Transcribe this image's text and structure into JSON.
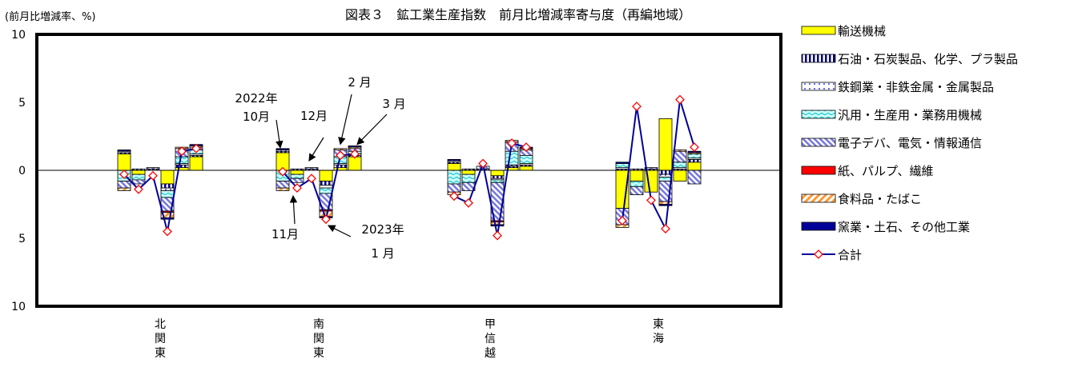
{
  "chart_data": {
    "type": "bar",
    "stacked": true,
    "title": "図表３　鉱工業生産指数　前月比増減率寄与度（再編地域）",
    "ylabel": "(前月比増減率、%)",
    "ylim": [
      -10,
      10
    ],
    "yticks": [
      {
        "value": 10,
        "label": "10"
      },
      {
        "value": 5,
        "label": "5"
      },
      {
        "value": 0,
        "label": "0"
      },
      {
        "value": -5,
        "label": "5"
      },
      {
        "value": -10,
        "label": "10"
      }
    ],
    "regions": [
      "北関東",
      "南関東",
      "甲信越",
      "東海"
    ],
    "months": [
      "2022年10月",
      "11月",
      "12月",
      "2023年1月",
      "2月",
      "3月"
    ],
    "series": [
      {
        "name": "輸送機械",
        "color": "#ffff00",
        "pattern": "solid",
        "values": [
          [
            1.2,
            -0.3,
            0,
            -1.0,
            0.2,
            1.0
          ],
          [
            1.3,
            -0.3,
            0,
            -0.8,
            0.2,
            1.0
          ],
          [
            0.5,
            -0.3,
            0,
            -0.4,
            0.2,
            0.3
          ],
          [
            -2.8,
            -0.8,
            -1.6,
            3.8,
            -0.8,
            0.6
          ]
        ]
      },
      {
        "name": "石油・石炭製品、化学、プラ製品",
        "color": "#000080",
        "pattern": "vstripe",
        "values": [
          [
            0.1,
            0.1,
            0.1,
            -0.3,
            0.2,
            0.1
          ],
          [
            0.1,
            0.1,
            0.1,
            -0.3,
            0.2,
            0.1
          ],
          [
            0.1,
            0.1,
            0.1,
            -0.2,
            0.1,
            0.1
          ],
          [
            0.1,
            0.1,
            0.1,
            -0.3,
            0.1,
            0.2
          ]
        ]
      },
      {
        "name": "鉄鋼業・非鉄金属・金属製品",
        "color": "#0000ff",
        "pattern": "dots",
        "values": [
          [
            0.1,
            0,
            0,
            -0.2,
            0.1,
            0.1
          ],
          [
            0.1,
            0,
            0,
            -0.2,
            0.1,
            0.1
          ],
          [
            0.1,
            0,
            0,
            -0.1,
            0.1,
            0.1
          ],
          [
            0.1,
            0,
            0,
            -0.2,
            0.1,
            0.1
          ]
        ]
      },
      {
        "name": "汎用・生産用・業務用機械",
        "color": "#33cccc",
        "pattern": "wave",
        "values": [
          [
            -0.8,
            -0.4,
            0,
            -0.5,
            0.5,
            0.3
          ],
          [
            -0.8,
            -0.3,
            0,
            -0.4,
            0.5,
            0.2
          ],
          [
            -1.0,
            -0.6,
            0,
            -0.2,
            1.0,
            0.6
          ],
          [
            0.3,
            -0.4,
            0,
            -0.3,
            0.4,
            0.3
          ]
        ]
      },
      {
        "name": "電子デバ、電気・情報通信",
        "color": "#9999ff",
        "pattern": "diag",
        "values": [
          [
            -0.5,
            -0.3,
            0.1,
            -1.0,
            0.6,
            0.2
          ],
          [
            -0.5,
            -0.3,
            0.1,
            -1.2,
            0.5,
            0.2
          ],
          [
            -0.6,
            -0.6,
            0.2,
            -2.8,
            0.7,
            0.4
          ],
          [
            -1.2,
            -0.6,
            0.1,
            -1.5,
            0.8,
            -1.0
          ]
        ]
      },
      {
        "name": "紙、パルプ、繊維",
        "color": "#ff0000",
        "pattern": "solid",
        "values": [
          [
            0,
            0,
            0,
            -0.1,
            0,
            0
          ],
          [
            0,
            0,
            0,
            -0.1,
            0,
            0
          ],
          [
            0,
            0,
            0,
            -0.1,
            0,
            0
          ],
          [
            0,
            0,
            0,
            0,
            0,
            0
          ]
        ]
      },
      {
        "name": "食料品・たばこ",
        "color": "#ff9933",
        "pattern": "hatch",
        "values": [
          [
            -0.2,
            0,
            0,
            -0.4,
            0.1,
            0.1
          ],
          [
            -0.2,
            0,
            0,
            -0.4,
            0.1,
            0.1
          ],
          [
            -0.2,
            0,
            0,
            -0.2,
            0.1,
            0.1
          ],
          [
            -0.2,
            0,
            0,
            -0.2,
            0.1,
            0.1
          ]
        ]
      },
      {
        "name": "窯業・土石、その他工業",
        "color": "#000099",
        "pattern": "solid",
        "values": [
          [
            0.1,
            0,
            0,
            -0.1,
            0,
            0.1
          ],
          [
            0.1,
            0,
            0,
            -0.1,
            0,
            0.1
          ],
          [
            0.1,
            0,
            0,
            -0.1,
            0,
            0.1
          ],
          [
            0.1,
            0,
            0,
            -0.1,
            0,
            0.1
          ]
        ]
      }
    ],
    "total": {
      "name": "合計",
      "color": "#000099",
      "marker_color": "#ff0000",
      "values": [
        [
          -0.3,
          -1.4,
          -0.4,
          -4.5,
          1.4,
          1.6
        ],
        [
          -0.1,
          -1.3,
          -0.6,
          -3.6,
          1.1,
          1.2
        ],
        [
          -1.9,
          -2.4,
          0.5,
          -4.8,
          2.0,
          1.7
        ],
        [
          -3.7,
          4.7,
          -2.2,
          -4.3,
          5.2,
          1.7
        ]
      ]
    },
    "legend_position": "right",
    "annotations": [
      {
        "text": "2022年",
        "target": "南関東-0",
        "text_pos": "upper-left"
      },
      {
        "text": "10月",
        "target": "南関東-0",
        "text_pos": "upper-left"
      },
      {
        "text": "12月",
        "target": "南関東-2",
        "text_pos": "above"
      },
      {
        "text": "2 月",
        "target": "南関東-4",
        "text_pos": "above"
      },
      {
        "text": "3 月",
        "target": "南関東-5",
        "text_pos": "upper-right"
      },
      {
        "text": "11月",
        "target": "南関東-1",
        "text_pos": "lower-left"
      },
      {
        "text": "2023年",
        "target": "南関東-3",
        "text_pos": "lower-right"
      },
      {
        "text": "1 月",
        "target": "南関東-3",
        "text_pos": "lower-right"
      }
    ]
  }
}
